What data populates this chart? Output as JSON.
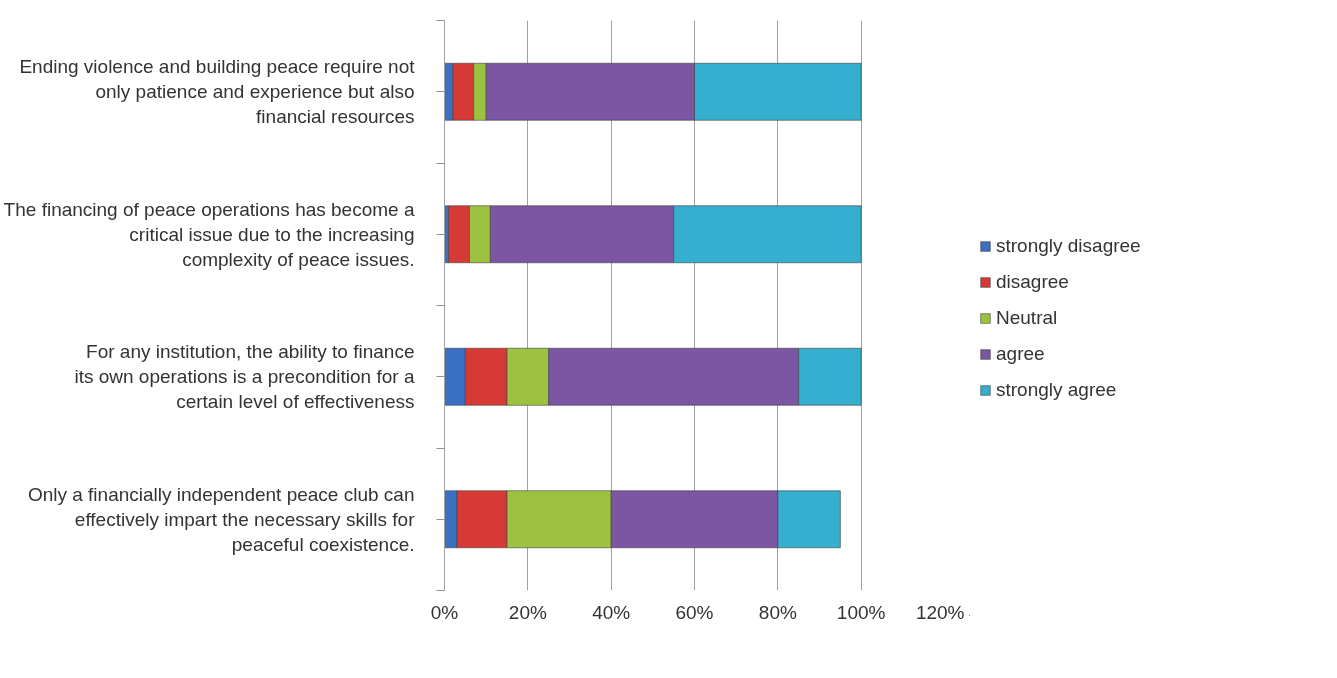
{
  "chart_data": {
    "type": "bar",
    "orientation": "horizontal",
    "stacked": true,
    "categories": [
      "Ending violence and building peace require not only patience and experience but also financial resources",
      "The financing of peace operations has become a critical issue due to the increasing complexity of peace issues.",
      "For any institution, the ability to finance its own operations is a precondition for a certain level of effectiveness",
      "Only a financially independent peace club can effectively impart the necessary skills for peaceful coexistence."
    ],
    "series": [
      {
        "name": "strongly disagree",
        "color": "#3a6fc4",
        "values": [
          2,
          1,
          5,
          3
        ]
      },
      {
        "name": "disagree",
        "color": "#d53a35",
        "values": [
          5,
          5,
          10,
          12
        ]
      },
      {
        "name": "Neutral",
        "color": "#9dc23f",
        "values": [
          3,
          5,
          10,
          25
        ]
      },
      {
        "name": "agree",
        "color": "#7c55a3",
        "values": [
          50,
          44,
          60,
          40
        ]
      },
      {
        "name": "strongly agree",
        "color": "#35aecf",
        "values": [
          40,
          45,
          15,
          15
        ]
      }
    ],
    "xlim": [
      0,
      120
    ],
    "xticks": [
      {
        "value": 0,
        "label": "0%"
      },
      {
        "value": 20,
        "label": "20%"
      },
      {
        "value": 40,
        "label": "40%"
      },
      {
        "value": 60,
        "label": "60%"
      },
      {
        "value": 80,
        "label": "80%"
      },
      {
        "value": 100,
        "label": "100%"
      },
      {
        "value": 120,
        "label": "120%"
      }
    ],
    "grid": "x",
    "legend": "right"
  }
}
